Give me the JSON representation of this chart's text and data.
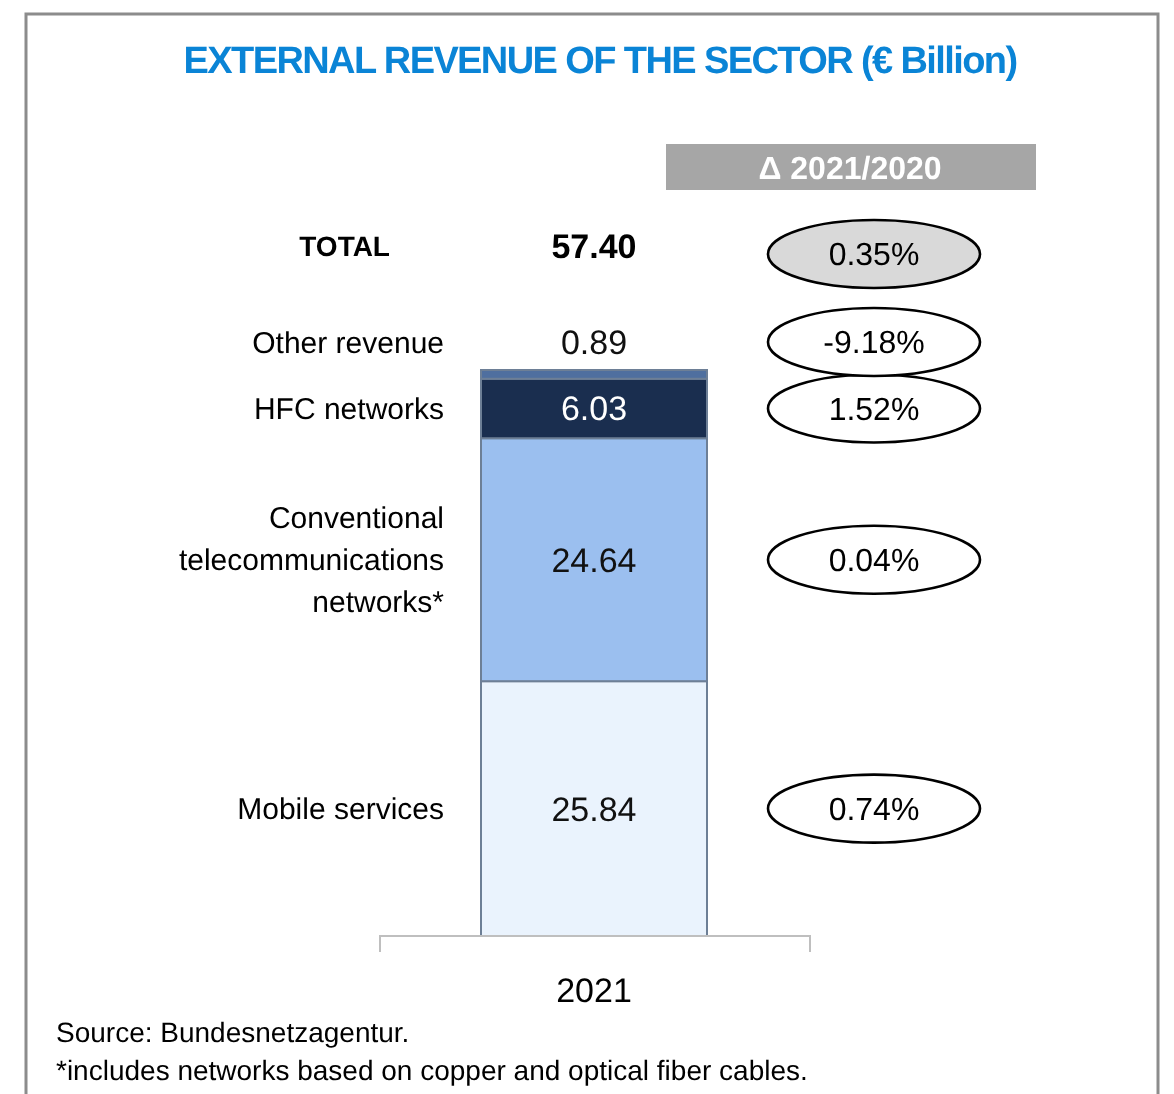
{
  "chart_data": {
    "type": "bar",
    "title": "EXTERNAL REVENUE OF THE SECTOR (€ Billion)",
    "stacked": true,
    "data_labels": true,
    "categories": [
      "2021"
    ],
    "totals": [
      "57.40"
    ],
    "series": [
      {
        "name": "Mobile services",
        "color": "#eaf3fd",
        "values": [
          25.84
        ]
      },
      {
        "name": "Conventional telecommunications networks*",
        "color": "#9bbfef",
        "values": [
          24.64
        ]
      },
      {
        "name": "HFC networks",
        "color": "#1a2e4f",
        "values": [
          6.03
        ]
      },
      {
        "name": "Other revenue",
        "color": "#4f6f9f",
        "values": [
          0.89
        ]
      }
    ],
    "annotations": [
      "TOTAL",
      "Δ 2021/2020",
      "0.35%",
      "0.74%",
      "0.04%",
      "1.52%",
      "-9.18%",
      "Source: Bundesnetzagentur.",
      "*includes networks based on copper and optical fiber cables."
    ]
  }
}
